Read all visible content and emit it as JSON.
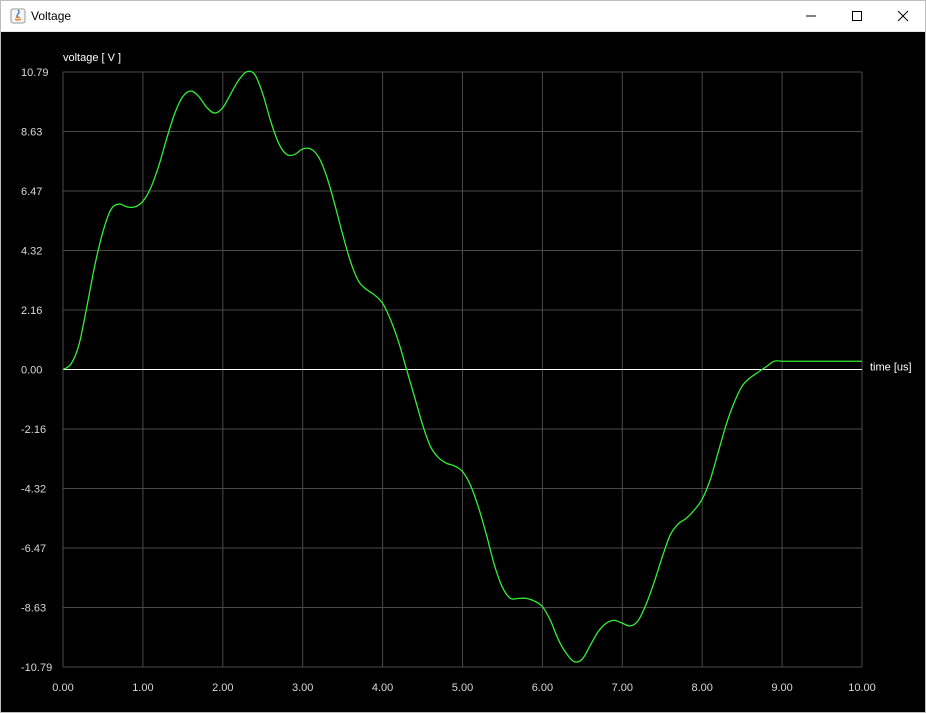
{
  "window": {
    "title": "Voltage",
    "controls": {
      "minimize": "minimize",
      "maximize": "maximize",
      "close": "close"
    }
  },
  "colors": {
    "background": "#000000",
    "grid": "#4a4a4a",
    "zero_line": "#ffffff",
    "series": "#33ee33"
  },
  "chart_data": {
    "type": "line",
    "ylabel": "voltage [ V ]",
    "xlabel": "time [us]",
    "xlim": [
      0,
      10
    ],
    "ylim": [
      -10.79,
      10.79
    ],
    "grid": true,
    "x_ticks": [
      "0.00",
      "1.00",
      "2.00",
      "3.00",
      "4.00",
      "5.00",
      "6.00",
      "7.00",
      "8.00",
      "9.00",
      "10.00"
    ],
    "y_ticks": [
      "10.79",
      "8.63",
      "6.47",
      "4.32",
      "2.16",
      "0.00",
      "-2.16",
      "-4.32",
      "-6.47",
      "-8.63",
      "-10.79"
    ],
    "series": [
      {
        "x": [
          0,
          0.1,
          0.2,
          0.3,
          0.4,
          0.5,
          0.6,
          0.7,
          0.8,
          0.9,
          1.0,
          1.1,
          1.2,
          1.3,
          1.4,
          1.5,
          1.6,
          1.7,
          1.8,
          1.9,
          2.0,
          2.1,
          2.2,
          2.3,
          2.4,
          2.5,
          2.6,
          2.7,
          2.8,
          2.9,
          3.0,
          3.1,
          3.2,
          3.3,
          3.4,
          3.5,
          3.6,
          3.7,
          3.8,
          3.9,
          4.0,
          4.1,
          4.2,
          4.3,
          4.4,
          4.5,
          4.6,
          4.7,
          4.8,
          4.9,
          5.0,
          5.1,
          5.2,
          5.3,
          5.4,
          5.5,
          5.6,
          5.7,
          5.8,
          5.9,
          6.0,
          6.1,
          6.2,
          6.3,
          6.4,
          6.5,
          6.6,
          6.7,
          6.8,
          6.9,
          7.0,
          7.1,
          7.2,
          7.3,
          7.4,
          7.5,
          7.6,
          7.7,
          7.8,
          7.9,
          8.0,
          8.1,
          8.2,
          8.3,
          8.4,
          8.5,
          8.6,
          8.7,
          8.8,
          8.9,
          9.0,
          9.1,
          9.2,
          9.3,
          9.4,
          9.5,
          9.6,
          9.7,
          9.8,
          9.9,
          10.0
        ],
        "y": [
          0.0,
          0.2,
          0.9,
          2.3,
          3.8,
          5.0,
          5.8,
          6.0,
          5.9,
          5.9,
          6.1,
          6.6,
          7.4,
          8.4,
          9.3,
          9.9,
          10.1,
          9.9,
          9.5,
          9.3,
          9.5,
          10.0,
          10.5,
          10.8,
          10.7,
          10.0,
          9.0,
          8.2,
          7.8,
          7.8,
          8.0,
          8.0,
          7.7,
          7.0,
          6.0,
          4.9,
          3.9,
          3.2,
          2.9,
          2.7,
          2.4,
          1.8,
          1.0,
          0.0,
          -1.0,
          -2.0,
          -2.8,
          -3.2,
          -3.4,
          -3.5,
          -3.7,
          -4.2,
          -5.0,
          -6.0,
          -7.1,
          -7.9,
          -8.3,
          -8.3,
          -8.3,
          -8.4,
          -8.6,
          -9.1,
          -9.8,
          -10.3,
          -10.6,
          -10.5,
          -10.0,
          -9.5,
          -9.2,
          -9.1,
          -9.2,
          -9.3,
          -9.1,
          -8.5,
          -7.7,
          -6.8,
          -6.0,
          -5.6,
          -5.4,
          -5.1,
          -4.7,
          -4.0,
          -3.0,
          -2.0,
          -1.2,
          -0.6,
          -0.3,
          -0.1,
          0.1,
          0.3,
          0.3,
          0.3,
          0.3,
          0.3,
          0.3,
          0.3,
          0.3,
          0.3,
          0.3,
          0.3,
          0.3
        ]
      }
    ]
  }
}
